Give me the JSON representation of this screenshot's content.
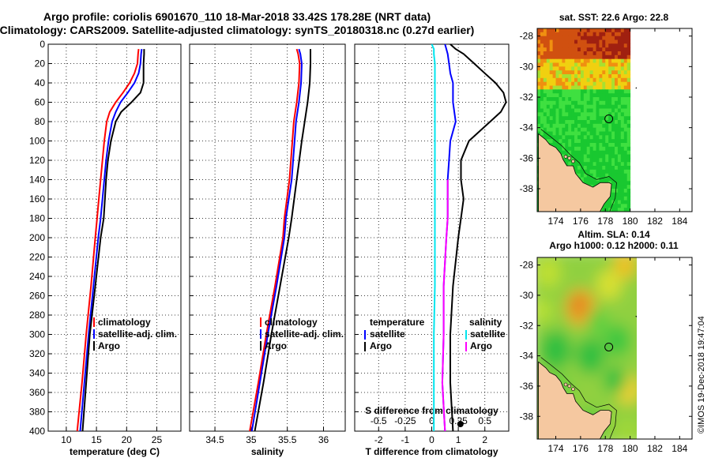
{
  "title_line1": "Argo profile: coriolis 6901670_110 18-Mar-2018 33.42S 178.28E (NRT data)",
  "title_line2": "Climatology: CARS2009. Satellite-adjusted climatology: synTS_20180318.nc (0.27d earlier)",
  "credit": "©IMOS 19-Dec-2018 19:47:04",
  "colors": {
    "climatology": "#ff0000",
    "satellite": "#0000ff",
    "argo": "#000000",
    "diff_temperature": "#ff00ff",
    "diff_salinity": "#00e5ee",
    "land": "#f5c8a0"
  },
  "chart_data": [
    {
      "type": "line",
      "name": "temperature-profile",
      "xlabel": "temperature (deg C)",
      "ylabel": "",
      "xlim": [
        7,
        29
      ],
      "ylim": [
        400,
        0
      ],
      "xticks": [
        "10",
        "15",
        "20",
        "25"
      ],
      "xtick_values": [
        10,
        15,
        20,
        25
      ],
      "yticks": [
        "0",
        "20",
        "40",
        "60",
        "80",
        "100",
        "120",
        "140",
        "160",
        "180",
        "200",
        "220",
        "240",
        "260",
        "280",
        "300",
        "320",
        "340",
        "360",
        "380",
        "400"
      ],
      "ytick_values": [
        0,
        20,
        40,
        60,
        80,
        100,
        120,
        140,
        160,
        180,
        200,
        220,
        240,
        260,
        280,
        300,
        320,
        340,
        360,
        380,
        400
      ],
      "grid": true,
      "legend": [
        "climatology",
        "satellite-adj. clim.",
        "Argo"
      ],
      "depth": [
        5,
        10,
        20,
        30,
        40,
        50,
        60,
        70,
        80,
        100,
        120,
        140,
        160,
        180,
        200,
        250,
        300,
        350,
        400
      ],
      "series": [
        {
          "name": "climatology",
          "values": [
            22.0,
            21.9,
            21.8,
            21.3,
            20.5,
            19.4,
            18.2,
            17.2,
            16.7,
            16.3,
            16.0,
            15.7,
            15.4,
            15.1,
            14.8,
            14.1,
            13.3,
            12.6,
            11.8
          ]
        },
        {
          "name": "satellite-adj. clim.",
          "values": [
            22.5,
            22.4,
            22.3,
            22.0,
            21.3,
            20.2,
            19.0,
            18.2,
            17.6,
            17.0,
            16.6,
            16.3,
            16.0,
            15.7,
            15.3,
            14.5,
            13.7,
            13.0,
            12.3
          ]
        },
        {
          "name": "Argo",
          "values": [
            22.9,
            22.9,
            22.8,
            22.8,
            22.8,
            22.3,
            20.8,
            19.1,
            18.2,
            17.4,
            16.9,
            16.6,
            16.4,
            16.2,
            15.7,
            14.8,
            13.9,
            13.3,
            12.7
          ]
        }
      ]
    },
    {
      "type": "line",
      "name": "salinity-profile",
      "xlabel": "salinity",
      "ylabel": "",
      "xlim": [
        34.15,
        36.3
      ],
      "ylim": [
        400,
        0
      ],
      "xticks": [
        "34.5",
        "35",
        "35.5",
        "36"
      ],
      "xtick_values": [
        34.5,
        35,
        35.5,
        36
      ],
      "grid": true,
      "legend": [
        "climatology",
        "satellite-adj. clim.",
        "Argo"
      ],
      "depth": [
        5,
        10,
        20,
        40,
        60,
        80,
        100,
        140,
        180,
        200,
        250,
        300,
        350,
        400
      ],
      "series": [
        {
          "name": "climatology",
          "values": [
            35.63,
            35.65,
            35.67,
            35.66,
            35.63,
            35.59,
            35.57,
            35.53,
            35.46,
            35.44,
            35.33,
            35.21,
            35.1,
            34.98
          ]
        },
        {
          "name": "satellite-adj. clim.",
          "values": [
            35.66,
            35.68,
            35.7,
            35.69,
            35.66,
            35.62,
            35.6,
            35.56,
            35.48,
            35.46,
            35.35,
            35.23,
            35.12,
            35.01
          ]
        },
        {
          "name": "Argo",
          "values": [
            35.82,
            35.82,
            35.82,
            35.81,
            35.78,
            35.74,
            35.7,
            35.63,
            35.56,
            35.52,
            35.4,
            35.28,
            35.17,
            35.05
          ]
        }
      ]
    },
    {
      "type": "line",
      "name": "difference-profile",
      "xlabel": "T difference from climatology",
      "top_xlabel": "S difference from climatology",
      "xlim": [
        -2.9,
        2.9
      ],
      "ylim": [
        400,
        0
      ],
      "xticks": [
        "-2",
        "-1",
        "0",
        "1",
        "2"
      ],
      "xtick_values": [
        -2,
        -1,
        0,
        1,
        2
      ],
      "sticks": [
        "-0.5",
        "-0.25",
        "0",
        "0.25",
        "0.5"
      ],
      "stick_values": [
        -0.5,
        -0.25,
        0,
        0.25,
        0.5
      ],
      "slim": [
        -0.725,
        0.725
      ],
      "grid": true,
      "legend_left_title": "temperature",
      "legend_right_title": "salinity",
      "legend_items": [
        "satellite",
        "Argo"
      ],
      "depth": [
        0,
        5,
        10,
        20,
        30,
        40,
        50,
        60,
        70,
        80,
        100,
        120,
        140,
        160,
        180,
        200,
        250,
        300,
        350,
        400
      ],
      "series": [
        {
          "name": "temperature satellite",
          "axis": "T",
          "values": [
            0.5,
            0.55,
            0.6,
            0.65,
            0.7,
            0.8,
            0.8,
            0.8,
            0.85,
            0.9,
            0.7,
            0.65,
            0.6,
            0.6,
            0.6,
            0.55,
            0.45,
            0.45,
            0.4,
            0.5
          ]
        },
        {
          "name": "temperature Argo",
          "axis": "T",
          "values": [
            0.7,
            0.9,
            1.2,
            1.6,
            2.0,
            2.4,
            2.7,
            2.8,
            2.6,
            2.2,
            1.4,
            1.1,
            1.1,
            1.2,
            1.1,
            1.0,
            0.8,
            0.7,
            0.7,
            0.8
          ]
        },
        {
          "name": "salinity satellite",
          "axis": "S",
          "values": [
            0.0,
            0.02,
            0.02,
            0.03,
            0.03,
            0.03,
            0.03,
            0.03,
            0.03,
            0.03,
            0.03,
            0.03,
            0.03,
            0.03,
            0.03,
            0.03,
            0.03,
            0.02,
            0.02,
            0.02
          ]
        }
      ]
    },
    {
      "type": "heatmap",
      "name": "sst-map",
      "title": "sat. SST: 22.6 Argo: 22.8",
      "xlim": [
        172.5,
        185
      ],
      "ylim": [
        -39.5,
        -27.5
      ],
      "xticks": [
        "174",
        "176",
        "178",
        "180",
        "182",
        "184"
      ],
      "xtick_values": [
        174,
        176,
        178,
        180,
        182,
        184
      ],
      "yticks": [
        "-28",
        "-30",
        "-32",
        "-34",
        "-36",
        "-38"
      ],
      "ytick_values": [
        -28,
        -30,
        -32,
        -34,
        -36,
        -38
      ],
      "profile_lon": 178.28,
      "profile_lat": -33.42
    },
    {
      "type": "heatmap",
      "name": "sla-map",
      "title": "Altim. SLA: 0.14",
      "subtitle": "Argo h1000: 0.12 h2000: 0.11",
      "xlim": [
        172.5,
        185
      ],
      "ylim": [
        -39.5,
        -27.5
      ],
      "xticks": [
        "174",
        "176",
        "178",
        "180",
        "182",
        "184"
      ],
      "xtick_values": [
        174,
        176,
        178,
        180,
        182,
        184
      ],
      "yticks": [
        "-28",
        "-30",
        "-32",
        "-34",
        "-36",
        "-38"
      ],
      "ytick_values": [
        -28,
        -30,
        -32,
        -34,
        -36,
        -38
      ],
      "profile_lon": 178.28,
      "profile_lat": -33.42
    }
  ]
}
